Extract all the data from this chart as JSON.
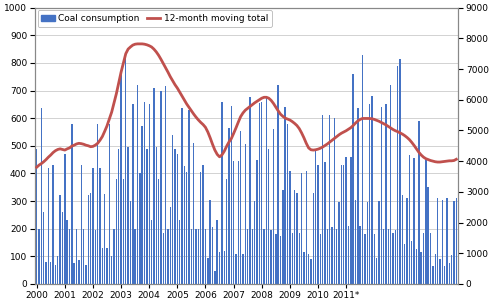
{
  "bar_color": "#4472C4",
  "line_color": "#C0504D",
  "bar_label": "Coal consumption",
  "line_label": "12-month moving total",
  "left_ylim": [
    0,
    1000
  ],
  "right_ylim": [
    0,
    9000
  ],
  "left_yticks": [
    0,
    100,
    200,
    300,
    400,
    500,
    600,
    700,
    800,
    900,
    1000
  ],
  "right_yticks": [
    0,
    1000,
    2000,
    3000,
    4000,
    5000,
    6000,
    7000,
    8000,
    9000
  ],
  "bar_values": [
    490,
    200,
    635,
    260,
    80,
    420,
    80,
    430,
    70,
    100,
    320,
    260,
    470,
    230,
    200,
    580,
    75,
    200,
    85,
    430,
    200,
    70,
    320,
    330,
    420,
    195,
    580,
    420,
    130,
    325,
    130,
    580,
    100,
    200,
    380,
    490,
    770,
    380,
    820,
    495,
    300,
    650,
    200,
    720,
    400,
    570,
    660,
    490,
    650,
    230,
    710,
    495,
    380,
    700,
    185,
    715,
    200,
    280,
    540,
    490,
    470,
    230,
    635,
    425,
    405,
    630,
    200,
    510,
    200,
    200,
    405,
    430,
    200,
    95,
    305,
    205,
    45,
    230,
    115,
    660,
    120,
    380,
    565,
    645,
    445,
    110,
    445,
    555,
    110,
    505,
    200,
    675,
    200,
    300,
    450,
    655,
    660,
    200,
    680,
    490,
    195,
    560,
    180,
    720,
    175,
    340,
    640,
    580,
    410,
    185,
    340,
    330,
    185,
    400,
    115,
    410,
    110,
    90,
    330,
    490,
    430,
    180,
    610,
    440,
    200,
    610,
    205,
    600,
    200,
    295,
    430,
    430,
    460,
    210,
    460,
    760,
    305,
    635,
    210,
    830,
    180,
    295,
    650,
    680,
    180,
    95,
    300,
    640,
    200,
    650,
    200,
    720,
    185,
    195,
    790,
    815,
    320,
    145,
    310,
    465,
    155,
    455,
    125,
    590,
    115,
    185,
    450,
    350,
    185,
    65,
    110,
    310,
    90,
    305,
    65,
    310,
    75,
    105,
    300,
    310
  ],
  "line_values": [
    3800,
    3870,
    3920,
    3980,
    4050,
    4130,
    4200,
    4280,
    4340,
    4380,
    4400,
    4380,
    4360,
    4400,
    4430,
    4490,
    4520,
    4560,
    4580,
    4570,
    4550,
    4520,
    4500,
    4470,
    4480,
    4520,
    4580,
    4680,
    4800,
    4970,
    5150,
    5380,
    5600,
    5900,
    6200,
    6550,
    6900,
    7200,
    7500,
    7650,
    7720,
    7780,
    7810,
    7820,
    7820,
    7820,
    7810,
    7790,
    7760,
    7720,
    7650,
    7560,
    7450,
    7320,
    7180,
    7040,
    6900,
    6750,
    6620,
    6490,
    6380,
    6250,
    6120,
    5990,
    5860,
    5750,
    5640,
    5530,
    5430,
    5340,
    5260,
    5190,
    5100,
    4950,
    4760,
    4550,
    4360,
    4220,
    4140,
    4200,
    4320,
    4480,
    4620,
    4730,
    4900,
    5080,
    5270,
    5450,
    5570,
    5660,
    5720,
    5780,
    5840,
    5900,
    5950,
    6000,
    6050,
    6080,
    6080,
    6050,
    5980,
    5880,
    5760,
    5640,
    5530,
    5460,
    5400,
    5370,
    5340,
    5290,
    5230,
    5160,
    5060,
    4920,
    4760,
    4580,
    4430,
    4370,
    4360,
    4370,
    4390,
    4420,
    4460,
    4510,
    4560,
    4620,
    4680,
    4740,
    4800,
    4860,
    4910,
    4950,
    4990,
    5040,
    5090,
    5160,
    5240,
    5310,
    5360,
    5390,
    5390,
    5390,
    5390,
    5380,
    5360,
    5330,
    5300,
    5260,
    5220,
    5180,
    5130,
    5080,
    5030,
    4990,
    4960,
    4920,
    4880,
    4830,
    4770,
    4700,
    4610,
    4510,
    4400,
    4290,
    4200,
    4130,
    4080,
    4050,
    4020,
    4000,
    3980,
    3970,
    3970,
    3980,
    3990,
    4000,
    4010,
    4010,
    4020,
    4060
  ],
  "xtick_labels": [
    "2000",
    "2001",
    "2002",
    "2003",
    "2004",
    "2005",
    "2006",
    "2007",
    "2008",
    "2009",
    "2010",
    "2011*"
  ],
  "background_color": "#FFFFFF",
  "grid_color": "#C0C0C0",
  "figsize": [
    4.93,
    3.04
  ],
  "dpi": 100
}
